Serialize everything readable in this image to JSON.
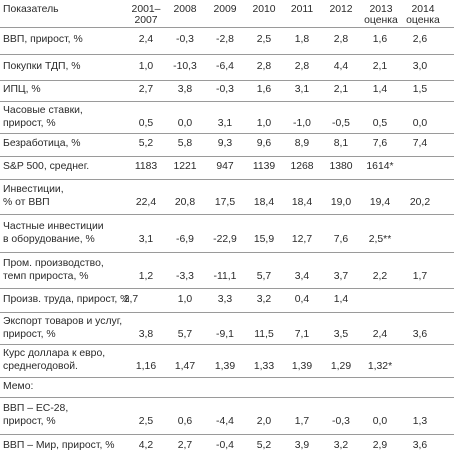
{
  "header": {
    "indicator": "Показатель",
    "columns": [
      {
        "line1": "2001–",
        "line2": "2007"
      },
      {
        "line1": "2008",
        "line2": ""
      },
      {
        "line1": "2009",
        "line2": ""
      },
      {
        "line1": "2010",
        "line2": ""
      },
      {
        "line1": "2011",
        "line2": ""
      },
      {
        "line1": "2012",
        "line2": ""
      },
      {
        "line1": "2013",
        "line2": "оценка"
      },
      {
        "line1": "2014",
        "line2": "оценка"
      }
    ]
  },
  "rows": [
    {
      "label": [
        "ВВП, прирост, %"
      ],
      "values": [
        "2,4",
        "-0,3",
        "-2,8",
        "2,5",
        "1,8",
        "2,8",
        "1,6",
        "2,6"
      ]
    },
    {
      "label": [
        "Покупки ТДП, %"
      ],
      "values": [
        "1,0",
        "-10,3",
        "-6,4",
        "2,8",
        "2,8",
        "4,4",
        "2,1",
        "3,0"
      ]
    },
    {
      "label": [
        "ИПЦ, %"
      ],
      "values": [
        "2,7",
        "3,8",
        "-0,3",
        "1,6",
        "3,1",
        "2,1",
        "1,4",
        "1,5"
      ]
    },
    {
      "label": [
        "Часовые ставки,",
        "прирост, %"
      ],
      "values": [
        "0,5",
        "0,0",
        "3,1",
        "1,0",
        "-1,0",
        "-0,5",
        "0,5",
        "0,0"
      ]
    },
    {
      "label": [
        "Безработица, %"
      ],
      "values": [
        "5,2",
        "5,8",
        "9,3",
        "9,6",
        "8,9",
        "8,1",
        "7,6",
        "7,4"
      ]
    },
    {
      "label": [
        "S&P 500, среднег."
      ],
      "values": [
        "1183",
        "1221",
        "947",
        "1139",
        "1268",
        "1380",
        "1614*",
        ""
      ]
    },
    {
      "label": [
        "Инвестиции,",
        "% от ВВП"
      ],
      "values": [
        "22,4",
        "20,8",
        "17,5",
        "18,4",
        "18,4",
        "19,0",
        "19,4",
        "20,2"
      ]
    },
    {
      "label": [
        "Частные инвестиции",
        "в оборудование, %"
      ],
      "values": [
        "3,1",
        "-6,9",
        "-22,9",
        "15,9",
        "12,7",
        "7,6",
        "2,5**",
        ""
      ]
    },
    {
      "label": [
        "Пром. производство,",
        "темп прироста, %"
      ],
      "values": [
        "1,2",
        "-3,3",
        "-11,1",
        "5,7",
        "3,4",
        "3,7",
        "2,2",
        "1,7"
      ]
    },
    {
      "label": [
        "Произв. труда, прирост, %"
      ],
      "values": [
        "2,7",
        "1,0",
        "3,3",
        "3,2",
        "0,4",
        "1,4",
        "",
        ""
      ]
    },
    {
      "label": [
        "Экспорт товаров и услуг,",
        "прирост, %"
      ],
      "values": [
        "3,8",
        "5,7",
        "-9,1",
        "11,5",
        "7,1",
        "3,5",
        "2,4",
        "3,6"
      ]
    },
    {
      "label": [
        "Курс доллара к евро,",
        "среднегодовой."
      ],
      "values": [
        "1,16",
        "1,47",
        "1,39",
        "1,33",
        "1,39",
        "1,29",
        "1,32*",
        ""
      ]
    },
    {
      "label": [
        "Мемо:"
      ],
      "values": [
        "",
        "",
        "",
        "",
        "",
        "",
        "",
        ""
      ]
    },
    {
      "label": [
        "ВВП – ЕС-28,",
        "прирост, %"
      ],
      "values": [
        "2,5",
        "0,6",
        "-4,4",
        "2,0",
        "1,7",
        "-0,3",
        "0,0",
        "1,3"
      ]
    },
    {
      "label": [
        "ВВП – Мир, прирост, %"
      ],
      "values": [
        "4,2",
        "2,7",
        "-0,4",
        "5,2",
        "3,9",
        "3,2",
        "2,9",
        "3,6"
      ]
    }
  ]
}
